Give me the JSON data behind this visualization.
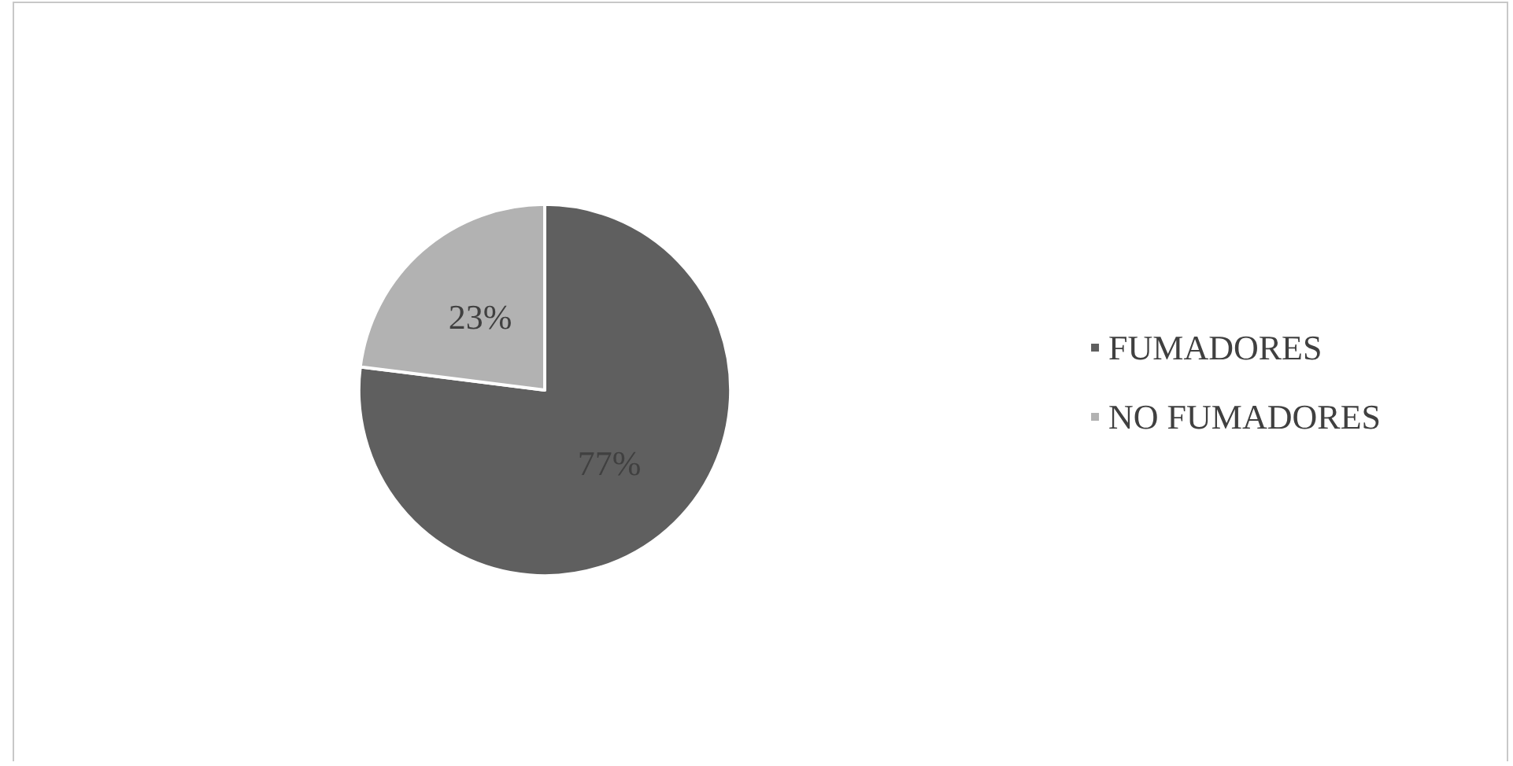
{
  "chart_data": {
    "type": "pie",
    "categories": [
      "FUMADORES",
      "NO FUMADORES"
    ],
    "values": [
      77,
      23
    ],
    "colors": [
      "#5f5f5f",
      "#b2b2b2"
    ],
    "value_labels": [
      "77%",
      "23%"
    ],
    "legend": "right"
  }
}
